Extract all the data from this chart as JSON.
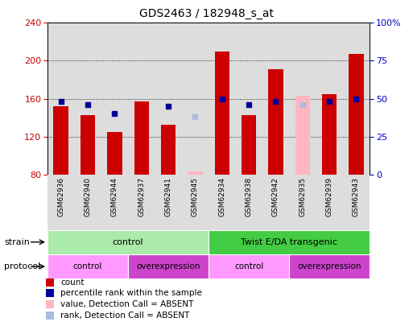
{
  "title": "GDS2463 / 182948_s_at",
  "samples": [
    "GSM62936",
    "GSM62940",
    "GSM62944",
    "GSM62937",
    "GSM62941",
    "GSM62945",
    "GSM62934",
    "GSM62938",
    "GSM62942",
    "GSM62935",
    "GSM62939",
    "GSM62943"
  ],
  "count_values": [
    152,
    143,
    125,
    157,
    132,
    null,
    210,
    143,
    191,
    null,
    165,
    207
  ],
  "rank_values": [
    48,
    46,
    40,
    null,
    45,
    null,
    50,
    46,
    48,
    null,
    48,
    50
  ],
  "absent_count": [
    null,
    null,
    null,
    null,
    null,
    83,
    null,
    null,
    null,
    163,
    null,
    null
  ],
  "absent_rank": [
    null,
    null,
    null,
    null,
    null,
    38,
    null,
    null,
    null,
    46,
    null,
    null
  ],
  "ylim_left": [
    80,
    240
  ],
  "ylim_right": [
    0,
    100
  ],
  "yticks_left": [
    80,
    120,
    160,
    200,
    240
  ],
  "yticks_right": [
    0,
    25,
    50,
    75,
    100
  ],
  "strain_groups": [
    {
      "label": "control",
      "start": 0,
      "end": 6,
      "color": "#AAEAAA"
    },
    {
      "label": "Twist E/DA transgenic",
      "start": 6,
      "end": 12,
      "color": "#44CC44"
    }
  ],
  "protocol_groups": [
    {
      "label": "control",
      "start": 0,
      "end": 3,
      "color": "#FF99FF"
    },
    {
      "label": "overexpression",
      "start": 3,
      "end": 6,
      "color": "#DD55DD"
    },
    {
      "label": "control",
      "start": 6,
      "end": 9,
      "color": "#FF99FF"
    },
    {
      "label": "overexpression",
      "start": 9,
      "end": 12,
      "color": "#DD55DD"
    }
  ],
  "count_color": "#CC0000",
  "rank_color": "#000099",
  "absent_count_color": "#FFB6C1",
  "absent_rank_color": "#AABBDD",
  "col_bg_color": "#DDDDDD",
  "legend_items": [
    {
      "label": "count",
      "color": "#CC0000"
    },
    {
      "label": "percentile rank within the sample",
      "color": "#000099"
    },
    {
      "label": "value, Detection Call = ABSENT",
      "color": "#FFB6C1"
    },
    {
      "label": "rank, Detection Call = ABSENT",
      "color": "#AABBDD"
    }
  ]
}
